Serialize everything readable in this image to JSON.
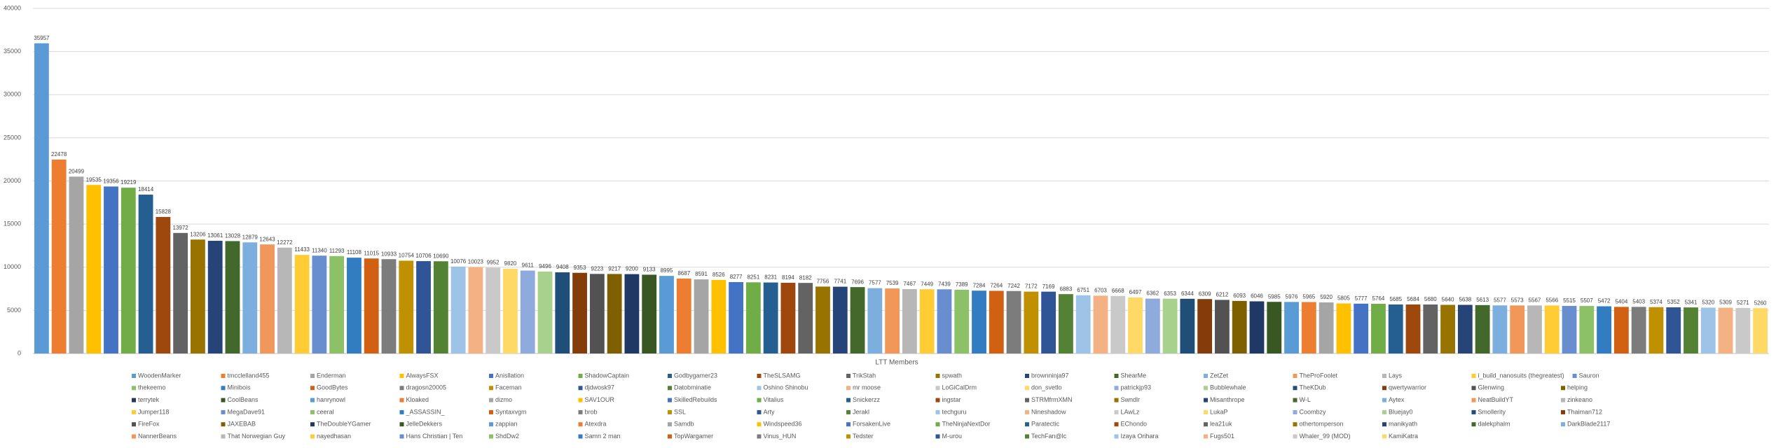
{
  "chart_data": {
    "type": "bar",
    "x_label": "LTT Members",
    "categories": [
      "WoodenMarker",
      "tmcclelland455",
      "Enderman",
      "AlwaysFSX",
      "Anisllation",
      "ShadowCaptain",
      "Godbygamer23",
      "TheSLSAMG",
      "TrikStah",
      "spwath",
      "brownninja97",
      "ShearMe",
      "ZetZet",
      "TheProFoolet",
      "Lays",
      "i_build_nanosuits (thegreatest)",
      "Sauron",
      "thekeemo",
      "Minibois",
      "GoodBytes",
      "dragosn20005",
      "Faceman",
      "djdwosk97",
      "Datobminatie",
      "Oshino Shinobu",
      "mr moose",
      "LoGiCalDrm",
      "don_svetlo",
      "patrickjp93",
      "Bubblewhale",
      "TheKDub",
      "qwertywarrior",
      "Glenwing",
      "helping",
      "terrytek",
      "CoolBeans",
      "hanrynowl",
      "Kloaked",
      "dizmo",
      "SAV1OUR",
      "SkilledRebuilds",
      "Vitalius",
      "Snickerzz",
      "ingstar",
      "STRMfrmXMN",
      "Swndlr",
      "Misanthrope",
      "W-L",
      "Aytex",
      "NeatBuildYT",
      "zinkeano",
      "Jumper118",
      "MegaDave91",
      "ceeral",
      "_ASSASSIN_",
      "Syntaxvgm",
      "brob",
      "SSL",
      "Arty",
      "Jerakl",
      "techguru",
      "Nineshadow",
      "LAwLz",
      "LukaP",
      "Coombzy",
      "Bluejay0",
      "Smollerity",
      "Thaiman712",
      "FireFox",
      "JAXEBAB",
      "TheDoubleYGamer",
      "JelleDekkers",
      "zappian",
      "Atexdra",
      "Samdb",
      "Windspeed36",
      "ForsakenLive",
      "TheNinjaNextDor",
      "Paratectic",
      "EChondo",
      "lea21uk",
      "othertomperson",
      "manikyath",
      "dalekphalm",
      "DarkBlade2117",
      "NannerBeans",
      "That Norwegian Guy",
      "nayedhasan",
      "Hans Christian | Ten",
      "ShdDw2",
      "Samn 2 man",
      "TopWargamer",
      "Vinus_HUN",
      "Tedster",
      "M-urou",
      "TechFan@lc",
      "Izaya Orihara",
      "Fugs501",
      "Whaler_99 (MOD)",
      "KamiKatra"
    ],
    "values": [
      35957,
      22478,
      20499,
      19535,
      19356,
      19219,
      18414,
      15828,
      13972,
      13206,
      13061,
      13028,
      12879,
      12643,
      12272,
      11433,
      11340,
      11293,
      11108,
      11015,
      10933,
      10754,
      10706,
      10690,
      10076,
      10023,
      9952,
      9820,
      9611,
      9496,
      9408,
      9353,
      9223,
      9217,
      9200,
      9133,
      8995,
      8687,
      8591,
      8526,
      8277,
      8251,
      8231,
      8194,
      8182,
      7756,
      7741,
      7696,
      7577,
      7539,
      7467,
      7449,
      7439,
      7389,
      7284,
      7264,
      7242,
      7172,
      7169,
      6883,
      6751,
      6703,
      6668,
      6497,
      6362,
      6353,
      6344,
      6309,
      6212,
      6093,
      6046,
      5985,
      5976,
      5965,
      5920,
      5805,
      5777,
      5764,
      5685,
      5684,
      5680,
      5640,
      5638,
      5613,
      5577,
      5573,
      5567,
      5566,
      5515,
      5507,
      5472,
      5404,
      5403,
      5374,
      5352,
      5341,
      5320,
      5309,
      5271,
      5260
    ],
    "colors": [
      "#5b9bd5",
      "#ed7d31",
      "#a5a5a5",
      "#ffc000",
      "#4472c4",
      "#70ad47",
      "#255e91",
      "#9e480e",
      "#636363",
      "#997300",
      "#264478",
      "#43682b",
      "#7cafdd",
      "#f1975a",
      "#b7b7b7",
      "#ffcd33",
      "#698ed0",
      "#8cc168",
      "#327dc2",
      "#d26012",
      "#7c7c7c",
      "#bf9000",
      "#2f5597",
      "#548235",
      "#9dc3e6",
      "#f4b183",
      "#c9c9c9",
      "#ffd966",
      "#8faadc",
      "#a9d18e",
      "#1f4e79",
      "#843c0b",
      "#525252",
      "#7f6000",
      "#203864",
      "#385723"
    ],
    "ylim": [
      0,
      40000
    ],
    "yticks": [
      0,
      5000,
      10000,
      15000,
      20000,
      25000,
      30000,
      35000,
      40000
    ],
    "grid": true,
    "legend": "bottom"
  }
}
